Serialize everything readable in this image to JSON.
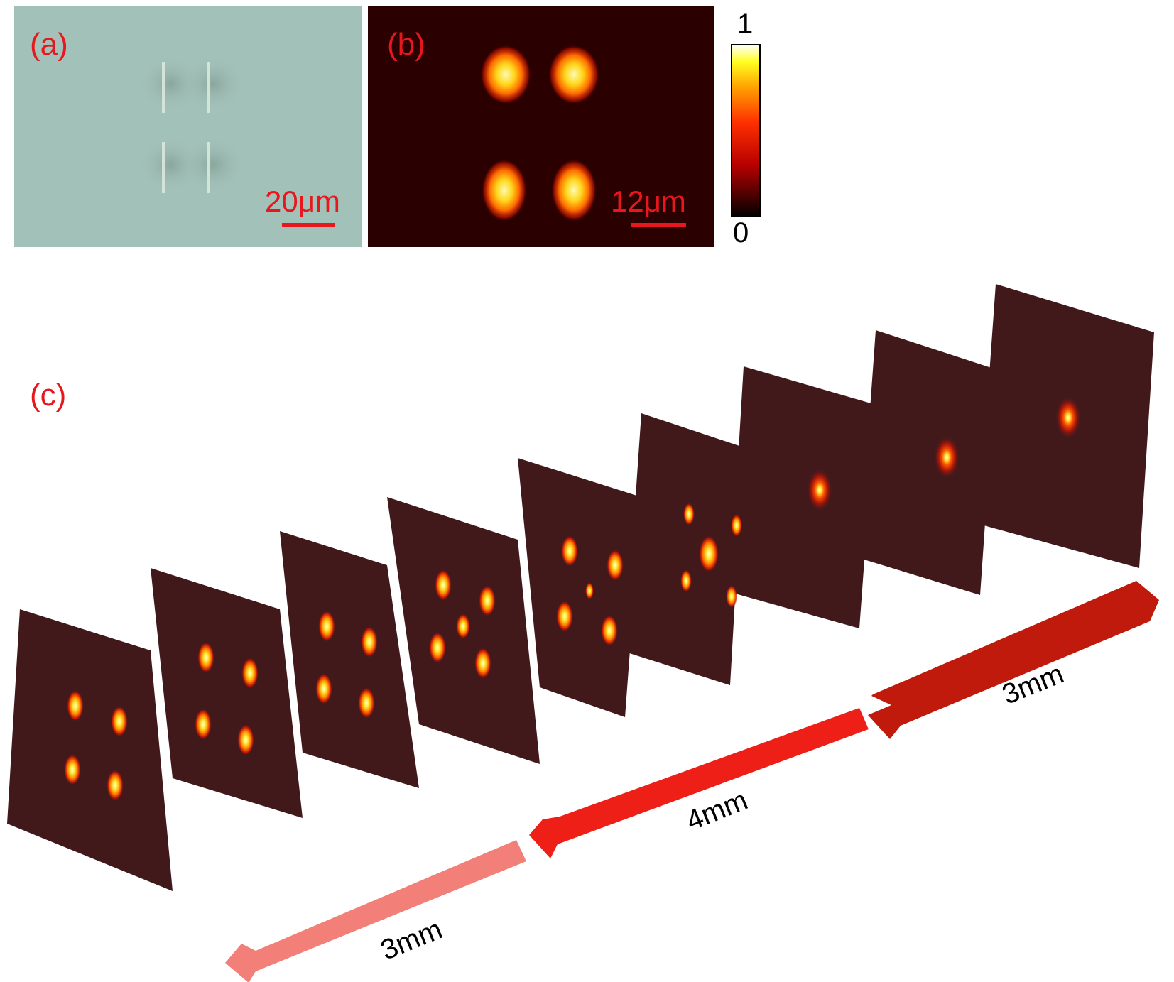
{
  "panels": {
    "a": {
      "label": "(a)",
      "scalebar": "20μm"
    },
    "b": {
      "label": "(b)",
      "scalebar": "12μm"
    },
    "c": {
      "label": "(c)"
    }
  },
  "colorbar": {
    "max_label": "1",
    "min_label": "0"
  },
  "arrows": [
    {
      "label": "3mm",
      "color": "#bf1a0b"
    },
    {
      "label": "4mm",
      "color": "#ee1f16"
    },
    {
      "label": "3mm",
      "color": "#f28079"
    }
  ],
  "colors": {
    "label_red": "#e8161d",
    "microscope_bg": "#a2c1b8",
    "intensity_bg": "#2a0100",
    "frame_bg": "#42191b"
  }
}
